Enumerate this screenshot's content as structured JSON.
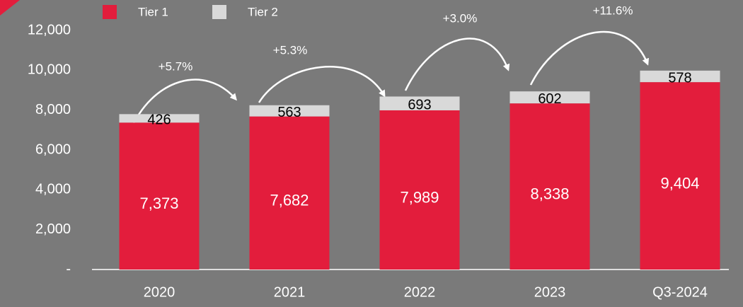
{
  "chart_data": {
    "type": "stacked_bar",
    "categories": [
      "2020",
      "2021",
      "2022",
      "2023",
      "Q3-2024"
    ],
    "series": [
      {
        "name": "Tier 1",
        "color": "#e31d3c",
        "values": [
          7373,
          7682,
          7989,
          8338,
          9404
        ],
        "value_labels": [
          "7,373",
          "7,682",
          "7,989",
          "8,338",
          "9,404"
        ]
      },
      {
        "name": "Tier 2",
        "color": "#d9d9d9",
        "values": [
          426,
          563,
          693,
          602,
          578
        ]
      }
    ],
    "ylim": [
      0,
      12000
    ],
    "yticks": [
      {
        "value": 0,
        "label": "-"
      },
      {
        "value": 2000,
        "label": "2,000"
      },
      {
        "value": 4000,
        "label": "4,000"
      },
      {
        "value": 6000,
        "label": "6,000"
      },
      {
        "value": 8000,
        "label": "8,000"
      },
      {
        "value": 10000,
        "label": "10,000"
      },
      {
        "value": 12000,
        "label": "12,000"
      }
    ],
    "annotations": [
      "+5.7%",
      "+5.3%",
      "+3.0%",
      "+11.6%"
    ],
    "legend": "top"
  }
}
